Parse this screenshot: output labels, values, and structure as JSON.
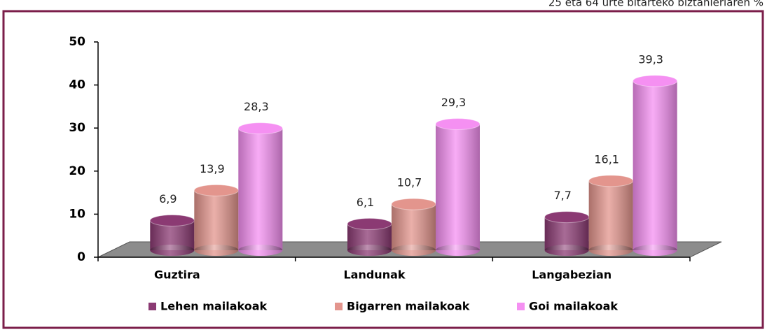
{
  "chart_data": {
    "type": "bar",
    "subtitle": "25 eta 64 urte bitarteko biztanleriaren %",
    "categories": [
      "Guztira",
      "Landunak",
      "Langabezian"
    ],
    "series": [
      {
        "name": "Lehen mailakoak",
        "color": "#8b3a73",
        "values": [
          6.9,
          6.1,
          7.7
        ],
        "value_labels": [
          "6,9",
          "6,1",
          "7,7"
        ]
      },
      {
        "name": "Bigarren mailakoak",
        "color": "#e3958d",
        "values": [
          13.9,
          10.7,
          16.1
        ],
        "value_labels": [
          "13,9",
          "10,7",
          "16,1"
        ]
      },
      {
        "name": "Goi mailakoak",
        "color": "#f590f2",
        "values": [
          28.3,
          29.3,
          39.3
        ],
        "value_labels": [
          "28,3",
          "29,3",
          "39,3"
        ]
      }
    ],
    "ylim": [
      0,
      50
    ],
    "yticks": [
      0,
      10,
      20,
      30,
      40,
      50
    ]
  }
}
